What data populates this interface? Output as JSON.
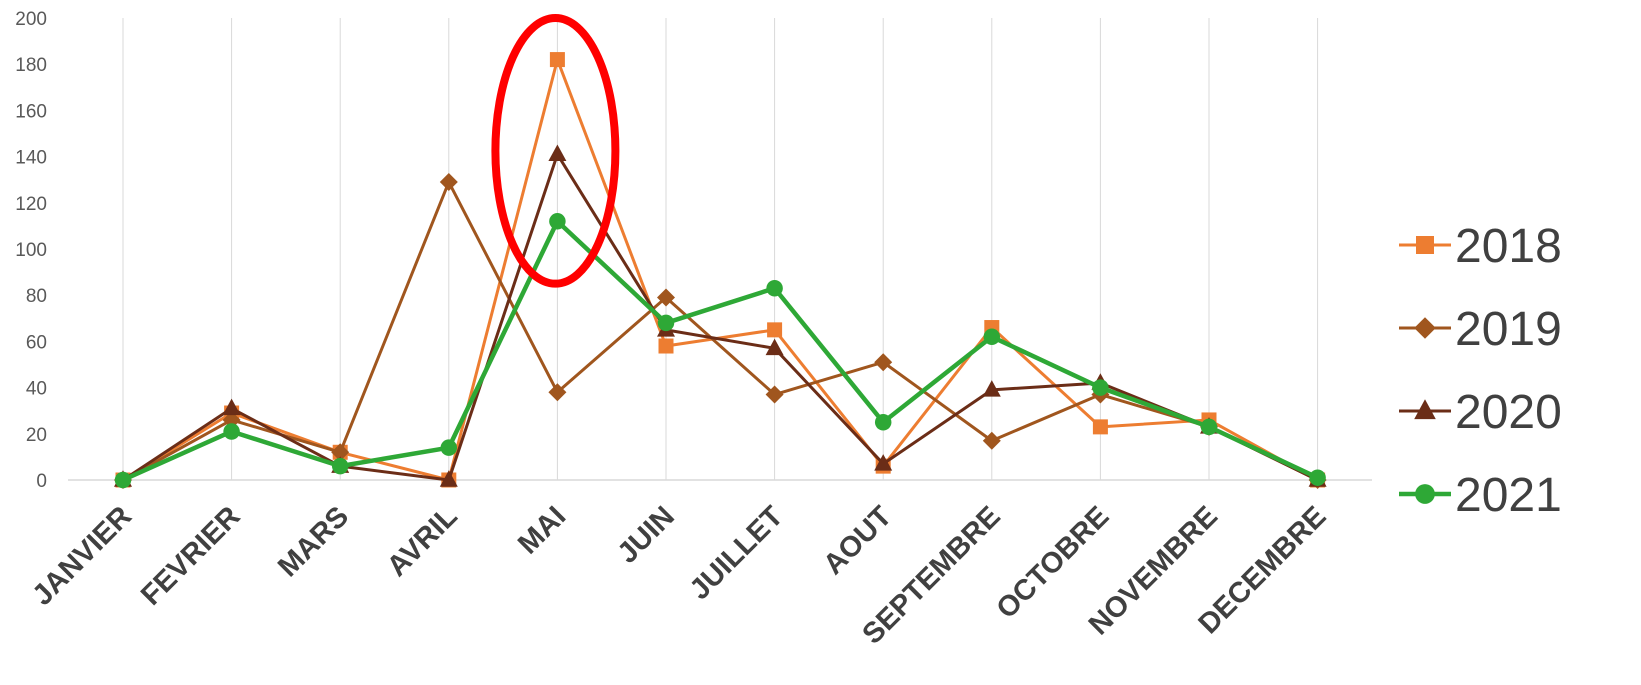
{
  "chart_data": {
    "type": "line",
    "categories": [
      "JANVIER",
      "FEVRIER",
      "MARS",
      "AVRIL",
      "MAI",
      "JUIN",
      "JUILLET",
      "AOUT",
      "SEPTEMBRE",
      "OCTOBRE",
      "NOVEMBRE",
      "DECEMBRE"
    ],
    "ylim": [
      0,
      200
    ],
    "yticks": [
      0,
      20,
      40,
      60,
      80,
      100,
      120,
      140,
      160,
      180,
      200
    ],
    "grid": "vertical",
    "legend_position": "right",
    "series": [
      {
        "name": "2018",
        "color": "#ED7D31",
        "marker": "square",
        "values": [
          0,
          29,
          12,
          0,
          182,
          58,
          65,
          6,
          66,
          23,
          26,
          0
        ]
      },
      {
        "name": "2019",
        "color": "#A0561E",
        "marker": "diamond",
        "values": [
          0,
          26,
          12,
          129,
          38,
          79,
          37,
          51,
          17,
          37,
          23,
          0
        ]
      },
      {
        "name": "2020",
        "color": "#6B2D17",
        "marker": "triangle",
        "values": [
          0,
          31,
          6,
          0,
          141,
          65,
          57,
          7,
          39,
          42,
          23,
          0
        ]
      },
      {
        "name": "2021",
        "color": "#2EA836",
        "marker": "circle",
        "values": [
          0,
          21,
          6,
          14,
          112,
          68,
          83,
          25,
          62,
          40,
          23,
          1
        ]
      }
    ],
    "annotation": {
      "type": "ellipse",
      "color": "#FF0000",
      "target_category": "MAI",
      "y_range": [
        85,
        200
      ]
    }
  }
}
